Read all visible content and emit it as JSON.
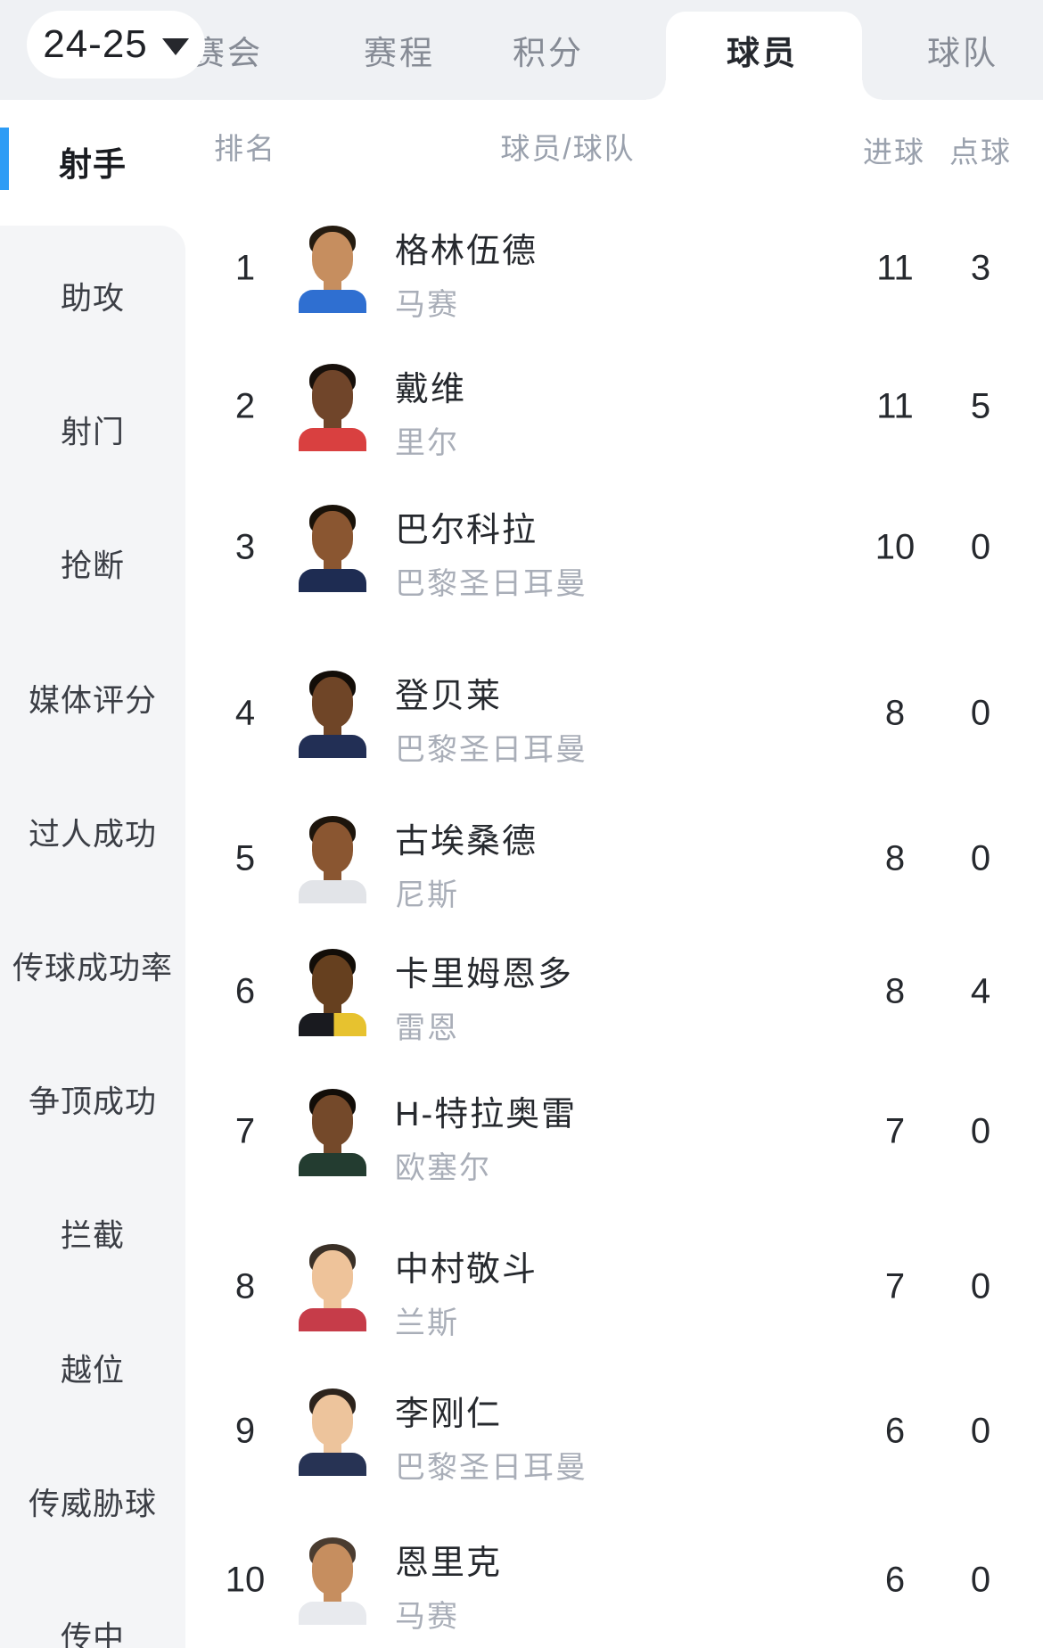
{
  "season_selector": {
    "label": "24-25",
    "dropdown_icon": "caret-down"
  },
  "tab_bar": {
    "tabs": [
      {
        "label": "赛会",
        "active": false
      },
      {
        "label": "赛程",
        "active": false
      },
      {
        "label": "积分",
        "active": false
      },
      {
        "label": "球员",
        "active": true
      },
      {
        "label": "球队",
        "active": false
      }
    ]
  },
  "sidebar": {
    "items": [
      {
        "label": "射手",
        "active": true
      },
      {
        "label": "助攻",
        "active": false
      },
      {
        "label": "射门",
        "active": false
      },
      {
        "label": "抢断",
        "active": false
      },
      {
        "label": "媒体评分",
        "active": false
      },
      {
        "label": "过人成功",
        "active": false
      },
      {
        "label": "传球成功率",
        "active": false
      },
      {
        "label": "争顶成功",
        "active": false
      },
      {
        "label": "拦截",
        "active": false
      },
      {
        "label": "越位",
        "active": false
      },
      {
        "label": "传威胁球",
        "active": false
      },
      {
        "label": "传中",
        "active": false
      }
    ]
  },
  "table": {
    "headers": {
      "rank": "排名",
      "player_team": "球员/球队",
      "goals": "进球",
      "penalties": "点球"
    },
    "rows": [
      {
        "rank": "1",
        "name": "格林伍德",
        "team": "马赛",
        "goals": "11",
        "penalties": "3",
        "avatar": {
          "skin": "#c68e5f",
          "hair": "#241b10",
          "shirt": "#2f6fd1"
        }
      },
      {
        "rank": "2",
        "name": "戴维",
        "team": "里尔",
        "goals": "11",
        "penalties": "5",
        "avatar": {
          "skin": "#70452a",
          "hair": "#17100b",
          "shirt": "#d94040"
        }
      },
      {
        "rank": "3",
        "name": "巴尔科拉",
        "team": "巴黎圣日耳曼",
        "goals": "10",
        "penalties": "0",
        "avatar": {
          "skin": "#8a5631",
          "hair": "#191209",
          "shirt": "#1e2c52"
        }
      },
      {
        "rank": "4",
        "name": "登贝莱",
        "team": "巴黎圣日耳曼",
        "goals": "8",
        "penalties": "0",
        "avatar": {
          "skin": "#6f4527",
          "hair": "#120d08",
          "shirt": "#222f55"
        }
      },
      {
        "rank": "5",
        "name": "古埃桑德",
        "team": "尼斯",
        "goals": "8",
        "penalties": "0",
        "avatar": {
          "skin": "#8a5631",
          "hair": "#1d150c",
          "shirt": "#e2e4e8"
        }
      },
      {
        "rank": "6",
        "name": "卡里姆恩多",
        "team": "雷恩",
        "goals": "8",
        "penalties": "4",
        "avatar": {
          "skin": "#66401f",
          "hair": "#120d08",
          "shirt": "#191a1f",
          "shirt2": "#e7c22f"
        }
      },
      {
        "rank": "7",
        "name": "H-特拉奥雷",
        "team": "欧塞尔",
        "goals": "7",
        "penalties": "0",
        "avatar": {
          "skin": "#74492a",
          "hair": "#120d08",
          "shirt": "#233c30"
        }
      },
      {
        "rank": "8",
        "name": "中村敬斗",
        "team": "兰斯",
        "goals": "7",
        "penalties": "0",
        "avatar": {
          "skin": "#eec39a",
          "hair": "#3a3027",
          "shirt": "#c63c49"
        }
      },
      {
        "rank": "9",
        "name": "李刚仁",
        "team": "巴黎圣日耳曼",
        "goals": "6",
        "penalties": "0",
        "avatar": {
          "skin": "#edc49c",
          "hair": "#2c231c",
          "shirt": "#273354"
        }
      },
      {
        "rank": "10",
        "name": "恩里克",
        "team": "马赛",
        "goals": "6",
        "penalties": "0",
        "avatar": {
          "skin": "#c68e5f",
          "hair": "#4a3c30",
          "shirt": "#e8eaee"
        }
      }
    ]
  },
  "colors": {
    "accent_blue": "#2d9cf5",
    "header_bg": "#eff1f4",
    "sidebar_bg": "#f4f5f7",
    "tab_text": "#868b95",
    "tab_active_text": "#25282e",
    "heading_gray": "#9aa1ad",
    "text_dark": "#26292e",
    "team_gray": "#a9aeb8"
  }
}
